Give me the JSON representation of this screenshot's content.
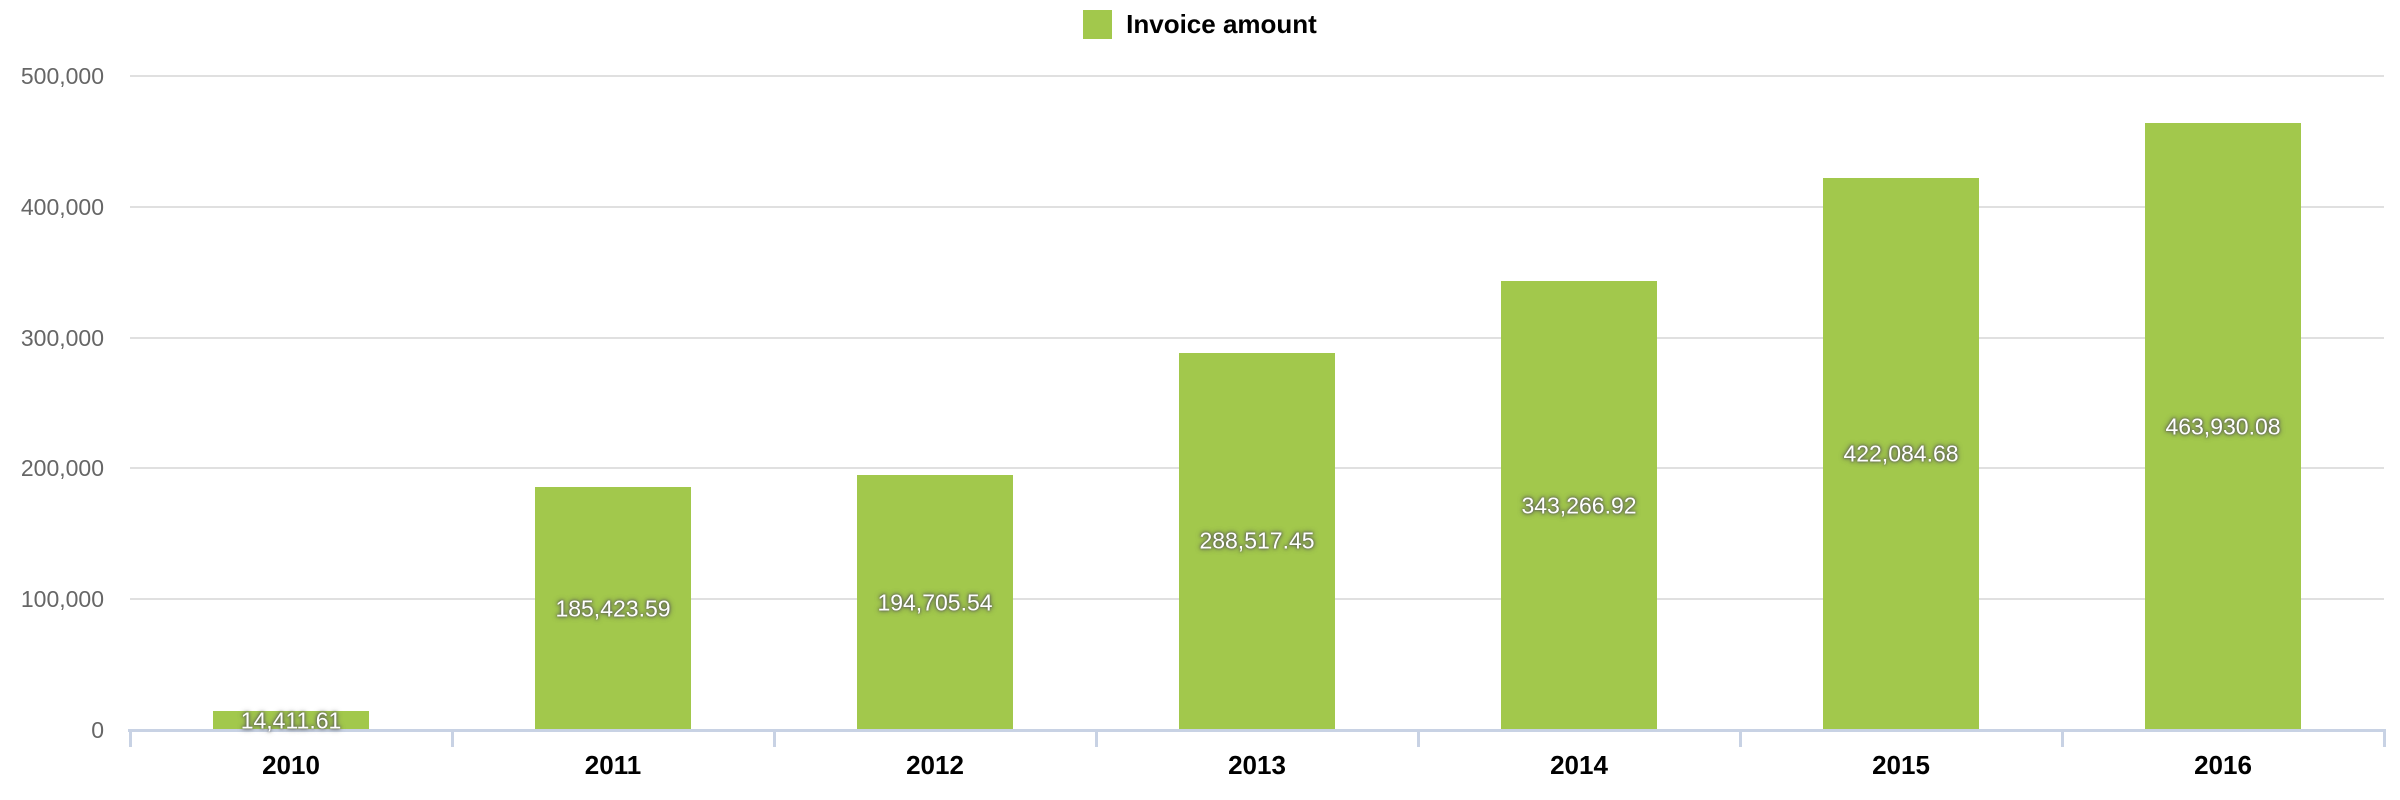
{
  "chart_data": {
    "type": "bar",
    "title": "",
    "xlabel": "",
    "ylabel": "",
    "categories": [
      "2010",
      "2011",
      "2012",
      "2013",
      "2014",
      "2015",
      "2016"
    ],
    "series": [
      {
        "name": "Invoice amount",
        "color": "#a2c84c",
        "values": [
          14411.61,
          185423.59,
          194705.54,
          288517.45,
          343266.92,
          422084.68,
          463930.08
        ],
        "data_labels": [
          "14,411.61",
          "185,423.59",
          "194,705.54",
          "288,517.45",
          "343,266.92",
          "422,084.68",
          "463,930.08"
        ]
      }
    ],
    "legend": {
      "position": "top-center",
      "items": [
        {
          "label": "Invoice amount",
          "color": "#a2c84c"
        }
      ]
    },
    "ylim": [
      0,
      500000
    ],
    "ytick_interval": 100000,
    "yticks": [
      {
        "value": 0,
        "label": "0"
      },
      {
        "value": 100000,
        "label": "100,000"
      },
      {
        "value": 200000,
        "label": "200,000"
      },
      {
        "value": 300000,
        "label": "300,000"
      },
      {
        "value": 400000,
        "label": "400,000"
      },
      {
        "value": 500000,
        "label": "500,000"
      }
    ],
    "grid": true,
    "style": {
      "background": "#ffffff",
      "grid_color": "#e0e0e0",
      "axis_line_color": "#c8d2e4",
      "y_label_color": "#666666",
      "x_label_color": "#000000",
      "value_label_color": "#ffffff",
      "legend_text_color": "#000000"
    }
  }
}
